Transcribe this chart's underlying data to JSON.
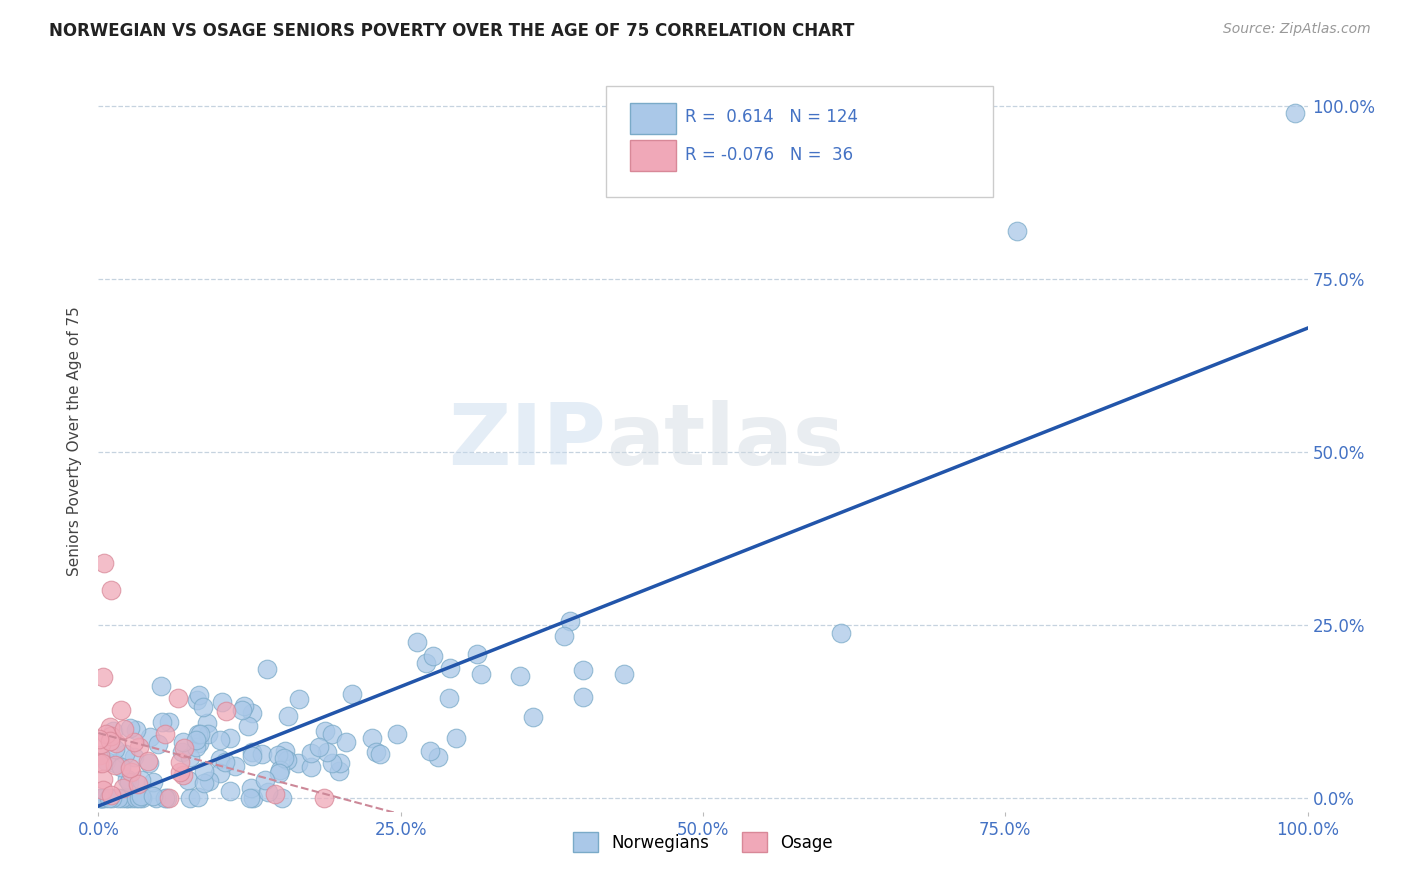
{
  "title": "NORWEGIAN VS OSAGE SENIORS POVERTY OVER THE AGE OF 75 CORRELATION CHART",
  "source": "Source: ZipAtlas.com",
  "ylabel": "Seniors Poverty Over the Age of 75",
  "background_color": "#ffffff",
  "plot_bg_color": "#ffffff",
  "title_color": "#222222",
  "axis_label_color": "#4472c4",
  "gridline_color": "#b8c8d8",
  "norwegian_color": "#aac8e8",
  "norwegian_edge": "#7aaac8",
  "osage_color": "#f0a8b8",
  "osage_edge": "#d88898",
  "norwegian_line_color": "#2255aa",
  "osage_line_color": "#cc8898",
  "r_norwegian": 0.614,
  "n_norwegian": 124,
  "r_osage": -0.076,
  "n_osage": 36,
  "xlim": [
    0,
    1.0
  ],
  "ylim": [
    -0.02,
    1.05
  ],
  "xticks": [
    0.0,
    0.25,
    0.5,
    0.75,
    1.0
  ],
  "xtick_labels": [
    "0.0%",
    "25.0%",
    "50.0%",
    "75.0%",
    "100.0%"
  ],
  "yticks": [
    0.0,
    0.25,
    0.5,
    0.75,
    1.0
  ],
  "ytick_labels_right": [
    "0.0%",
    "25.0%",
    "50.0%",
    "75.0%",
    "100.0%"
  ],
  "watermark_zip": "ZIP",
  "watermark_atlas": "atlas",
  "figsize": [
    14.06,
    8.92
  ],
  "dpi": 100
}
